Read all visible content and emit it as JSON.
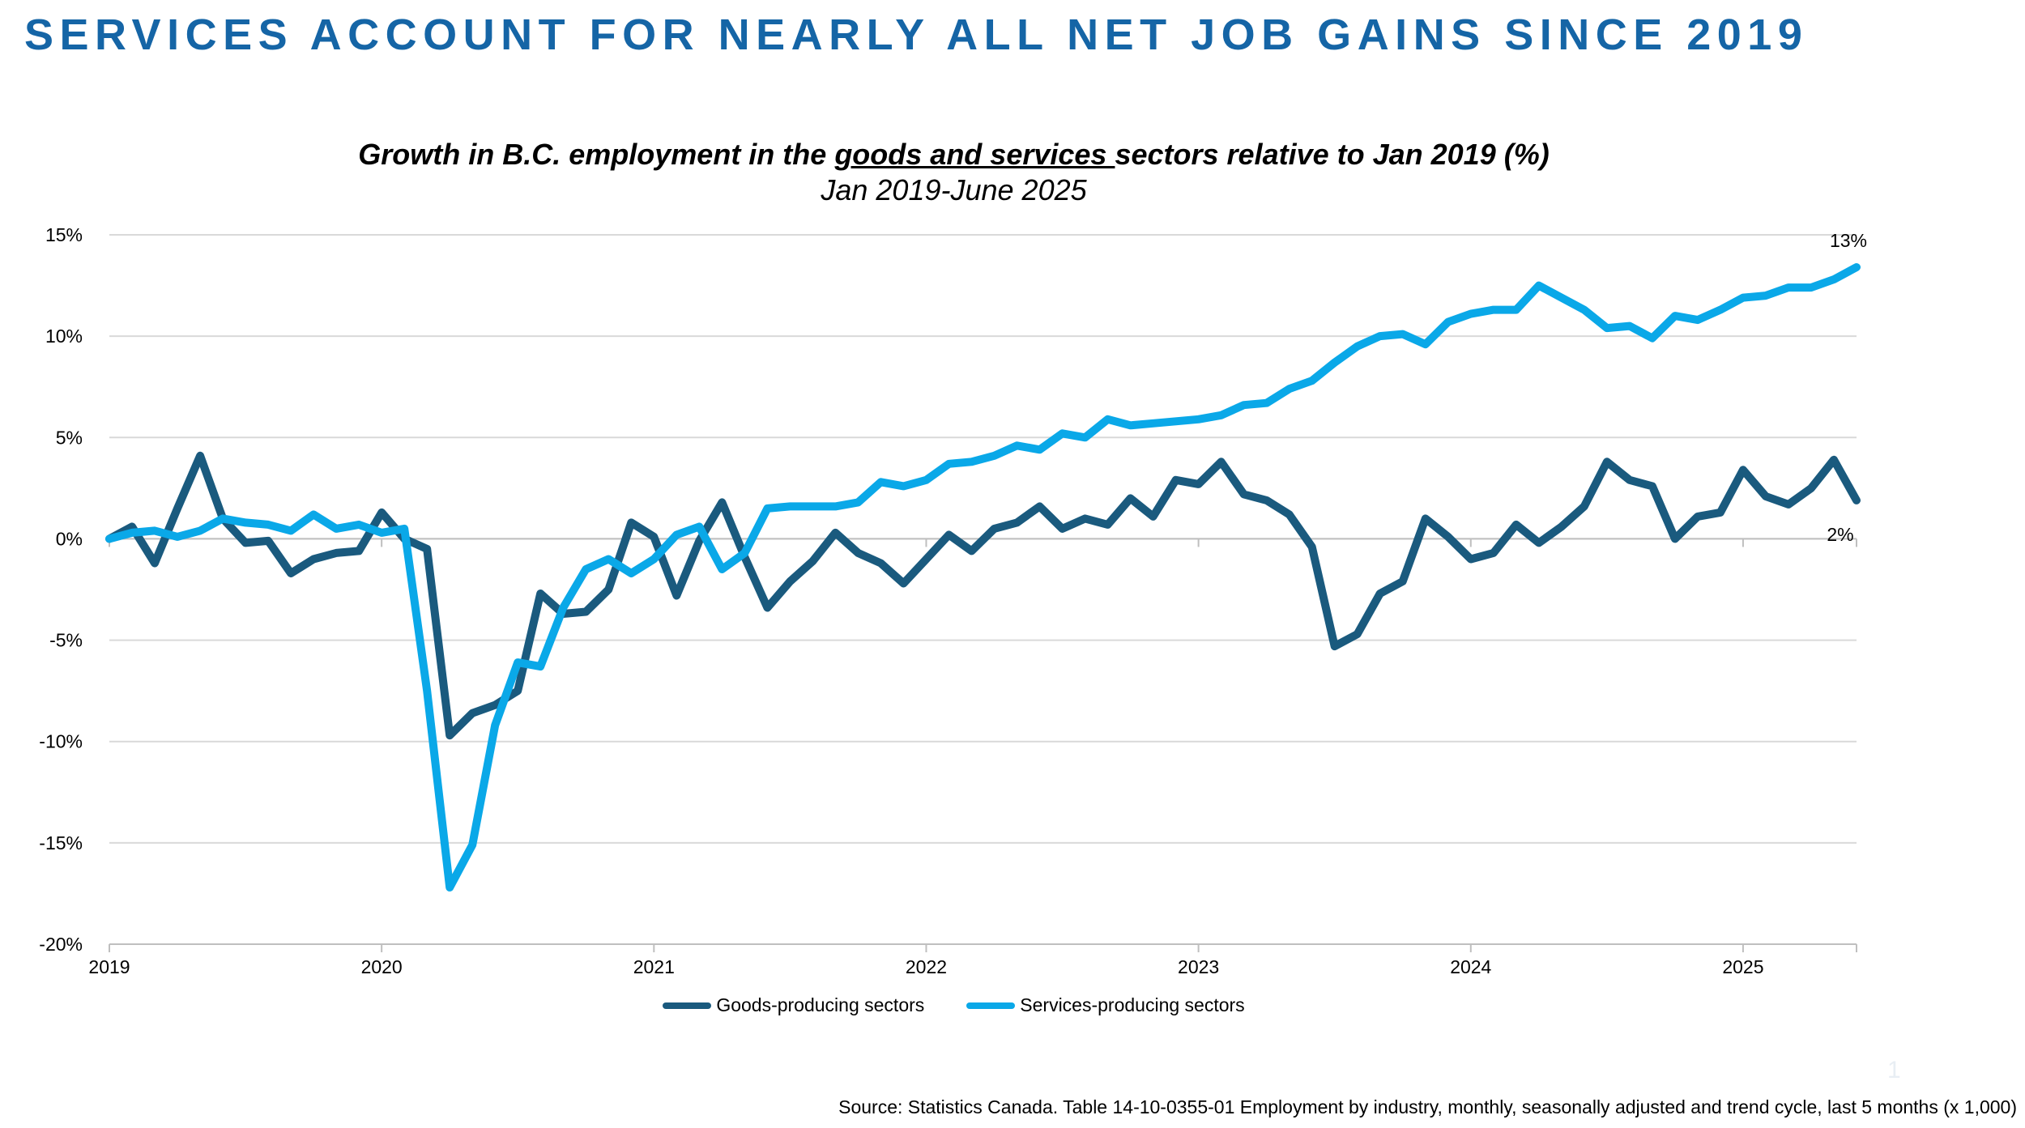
{
  "slide": {
    "title": "SERVICES ACCOUNT FOR NEARLY ALL NET JOB GAINS SINCE 2019",
    "page_number": "1",
    "source": "Source: Statistics Canada. Table 14-10-0355-01  Employment by industry, monthly, seasonally adjusted and trend cycle, last 5 months (x 1,000)"
  },
  "chart_data": {
    "type": "line",
    "title_parts": [
      "Growth in B.C. employment in the ",
      "goods and services ",
      "sectors relative to Jan 2019 (%)"
    ],
    "subtitle": "Jan 2019-June 2025",
    "xlabel": "",
    "ylabel": "",
    "x_start": "2019-01",
    "x_end": "2025-06",
    "x_tick_labels": [
      "2019",
      "2020",
      "2021",
      "2022",
      "2023",
      "2024",
      "2025"
    ],
    "y_ticks": [
      15,
      10,
      5,
      0,
      -5,
      -10,
      -15,
      -20
    ],
    "y_tick_labels": [
      "15%",
      "10%",
      "5%",
      "0%",
      "-5%",
      "-10%",
      "-15%",
      "-20%"
    ],
    "ylim": [
      -20,
      15
    ],
    "grid": true,
    "legend_position": "bottom",
    "series": [
      {
        "name": "Goods-producing sectors",
        "color": "#1a5a7e",
        "end_label": "2%",
        "values": [
          0.0,
          0.6,
          -1.2,
          1.5,
          4.1,
          1.0,
          -0.2,
          -0.1,
          -1.7,
          -1.0,
          -0.7,
          -0.6,
          1.3,
          0.0,
          -0.5,
          -9.7,
          -8.6,
          -8.2,
          -7.5,
          -2.7,
          -3.7,
          -3.6,
          -2.5,
          0.8,
          0.1,
          -2.8,
          -0.1,
          1.8,
          -0.9,
          -3.4,
          -2.1,
          -1.1,
          0.3,
          -0.7,
          -1.2,
          -2.2,
          -1.0,
          0.2,
          -0.6,
          0.5,
          0.8,
          1.6,
          0.5,
          1.0,
          0.7,
          2.0,
          1.1,
          2.9,
          2.7,
          3.8,
          2.2,
          1.9,
          1.2,
          -0.4,
          -5.3,
          -4.7,
          -2.7,
          -2.1,
          1.0,
          0.1,
          -1.0,
          -0.7,
          0.7,
          -0.2,
          0.6,
          1.6,
          3.8,
          2.9,
          2.6,
          0.0,
          1.1,
          1.3,
          3.4,
          2.1,
          1.7,
          2.5,
          3.9,
          1.9
        ]
      },
      {
        "name": "Services-producing sectors",
        "color": "#0aa8e8",
        "end_label": "13%",
        "values": [
          0.0,
          0.3,
          0.4,
          0.1,
          0.4,
          1.0,
          0.8,
          0.7,
          0.4,
          1.2,
          0.5,
          0.7,
          0.3,
          0.5,
          -7.5,
          -17.2,
          -15.1,
          -9.2,
          -6.1,
          -6.3,
          -3.4,
          -1.5,
          -1.0,
          -1.7,
          -1.0,
          0.2,
          0.6,
          -1.5,
          -0.7,
          1.5,
          1.6,
          1.6,
          1.6,
          1.8,
          2.8,
          2.6,
          2.9,
          3.7,
          3.8,
          4.1,
          4.6,
          4.4,
          5.2,
          5.0,
          5.9,
          5.6,
          5.7,
          5.8,
          5.9,
          6.1,
          6.6,
          6.7,
          7.4,
          7.8,
          8.7,
          9.5,
          10.0,
          10.1,
          9.6,
          10.7,
          11.1,
          11.3,
          11.3,
          12.5,
          11.9,
          11.3,
          10.4,
          10.5,
          9.9,
          11.0,
          10.8,
          11.3,
          11.9,
          12.0,
          12.4,
          12.4,
          12.8,
          13.4
        ]
      }
    ]
  }
}
